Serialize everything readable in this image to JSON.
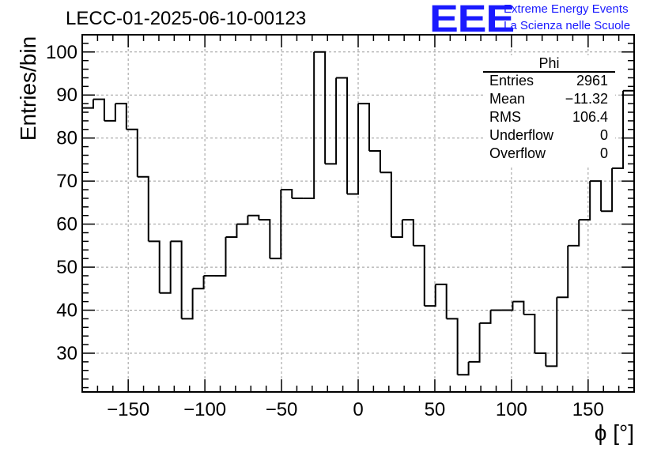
{
  "title": "LECC-01-2025-06-10-00123",
  "logo": {
    "mark": "EEE",
    "line1": "Extreme Energy Events",
    "line2": "La Scienza nelle Scuole",
    "color": "#1a1aff"
  },
  "stats": {
    "name": "Phi",
    "rows": [
      {
        "key": "Entries",
        "value": "2961"
      },
      {
        "key": "Mean",
        "value": "−11.32"
      },
      {
        "key": "RMS",
        "value": "106.4"
      },
      {
        "key": "Underflow",
        "value": "0"
      },
      {
        "key": "Overflow",
        "value": "0"
      }
    ]
  },
  "chart_data": {
    "type": "histogram",
    "xlabel": "ϕ [°]",
    "ylabel": "Entries/bin",
    "xlim": [
      -180,
      180
    ],
    "ylim": [
      21,
      104
    ],
    "bin_width": 7.2,
    "x_ticks": [
      -150,
      -100,
      -50,
      0,
      50,
      100,
      150
    ],
    "x_tick_labels": [
      "−150",
      "−100",
      "−50",
      "0",
      "50",
      "100",
      "150"
    ],
    "y_ticks": [
      30,
      40,
      50,
      60,
      70,
      80,
      90,
      100
    ],
    "y_tick_labels": [
      "30",
      "40",
      "50",
      "60",
      "70",
      "80",
      "90",
      "100"
    ],
    "grid": true,
    "line_color": "#000000",
    "values": [
      87,
      89,
      84,
      88,
      82,
      71,
      56,
      44,
      56,
      38,
      45,
      48,
      48,
      57,
      60,
      62,
      61,
      52,
      68,
      66,
      66,
      100,
      74,
      94,
      67,
      88,
      77,
      72,
      57,
      61,
      55,
      41,
      46,
      38,
      25,
      28,
      37,
      40,
      40,
      42,
      39,
      30,
      27,
      43,
      55,
      61,
      70,
      63,
      73,
      91
    ]
  }
}
